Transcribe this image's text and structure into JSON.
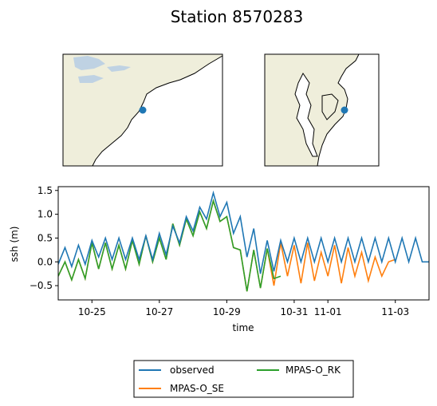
{
  "chart_data": {
    "type": "line",
    "title": "Station 8570283",
    "xlabel": "time",
    "ylabel": "ssh (m)",
    "x_units": "days (Oct 24 = 0)",
    "xlim": [
      "10-24",
      "11-04"
    ],
    "ylim": [
      -0.8,
      1.58
    ],
    "x_ticks": [
      "10-25",
      "10-27",
      "10-29",
      "10-31",
      "11-01",
      "11-03"
    ],
    "y_ticks": [
      "−0.5",
      "0.0",
      "0.5",
      "1.0",
      "1.5"
    ],
    "grid": false,
    "legend": {
      "placement": "below plot",
      "entries": [
        "observed",
        "MPAS-O_SE",
        "MPAS-O_RK"
      ]
    },
    "colors": {
      "observed": "#1f77b4",
      "MPAS-O_SE": "#ff7f0e",
      "MPAS-O_RK": "#2ca02c"
    },
    "series": [
      {
        "name": "observed",
        "x": [
          0.0,
          0.2,
          0.4,
          0.6,
          0.8,
          1.0,
          1.2,
          1.4,
          1.6,
          1.8,
          2.0,
          2.2,
          2.4,
          2.6,
          2.8,
          3.0,
          3.2,
          3.4,
          3.6,
          3.8,
          4.0,
          4.2,
          4.4,
          4.6,
          4.8,
          5.0,
          5.2,
          5.4,
          5.6,
          5.8,
          6.0,
          6.2,
          6.4,
          6.6,
          6.8,
          7.0,
          7.2,
          7.4,
          7.6,
          7.8,
          8.0,
          8.2,
          8.4,
          8.6,
          8.8,
          9.0,
          9.2,
          9.4,
          9.6,
          9.8,
          10.0,
          10.2,
          10.4,
          10.6,
          10.8,
          11.0
        ],
        "y": [
          -0.05,
          0.3,
          -0.1,
          0.35,
          -0.05,
          0.45,
          0.1,
          0.5,
          0.05,
          0.5,
          0.05,
          0.5,
          0.05,
          0.55,
          0.05,
          0.6,
          0.15,
          0.75,
          0.4,
          0.95,
          0.65,
          1.15,
          0.9,
          1.45,
          0.95,
          1.25,
          0.6,
          0.95,
          0.1,
          0.7,
          -0.25,
          0.45,
          -0.2,
          0.45,
          0.0,
          0.5,
          0.0,
          0.5,
          0.0,
          0.5,
          0.0,
          0.5,
          0.0,
          0.5,
          0.0,
          0.5,
          0.0,
          0.5,
          0.0,
          0.5,
          0.0,
          0.5,
          0.0,
          0.5,
          0.0,
          0.0
        ]
      },
      {
        "name": "MPAS-O_SE",
        "x": [
          0.0,
          0.2,
          0.4,
          0.6,
          0.8,
          1.0,
          1.2,
          1.4,
          1.6,
          1.8,
          2.0,
          2.2,
          2.4,
          2.6,
          2.8,
          3.0,
          3.2,
          3.4,
          3.6,
          3.8,
          4.0,
          4.2,
          4.4,
          4.6,
          4.8,
          5.0,
          5.2,
          5.4,
          5.6,
          5.8,
          6.0,
          6.2,
          6.4,
          6.6,
          6.8,
          7.0,
          7.2,
          7.4,
          7.6,
          7.8,
          8.0,
          8.2,
          8.4,
          8.6,
          8.8,
          9.0,
          9.2,
          9.4,
          9.6,
          9.8,
          10.0
        ],
        "y": [
          -0.3,
          0.0,
          -0.38,
          0.05,
          -0.35,
          0.4,
          -0.15,
          0.4,
          -0.15,
          0.35,
          -0.15,
          0.45,
          -0.05,
          0.55,
          0.0,
          0.5,
          0.05,
          0.8,
          0.35,
          0.9,
          0.55,
          1.05,
          0.7,
          1.28,
          0.85,
          0.95,
          0.3,
          0.25,
          -0.62,
          0.25,
          -0.55,
          0.28,
          -0.5,
          0.4,
          -0.3,
          0.35,
          -0.45,
          0.4,
          -0.4,
          0.2,
          -0.3,
          0.35,
          -0.45,
          0.3,
          -0.3,
          0.2,
          -0.4,
          0.1,
          -0.3,
          0.0,
          0.05
        ]
      },
      {
        "name": "MPAS-O_RK",
        "x": [
          0.0,
          0.2,
          0.4,
          0.6,
          0.8,
          1.0,
          1.2,
          1.4,
          1.6,
          1.8,
          2.0,
          2.2,
          2.4,
          2.6,
          2.8,
          3.0,
          3.2,
          3.4,
          3.6,
          3.8,
          4.0,
          4.2,
          4.4,
          4.6,
          4.8,
          5.0,
          5.2,
          5.4,
          5.6,
          5.8,
          6.0,
          6.2,
          6.4,
          6.6
        ],
        "y": [
          -0.3,
          0.0,
          -0.38,
          0.05,
          -0.35,
          0.4,
          -0.15,
          0.4,
          -0.15,
          0.35,
          -0.15,
          0.45,
          -0.05,
          0.55,
          0.0,
          0.5,
          0.05,
          0.8,
          0.35,
          0.9,
          0.55,
          1.05,
          0.7,
          1.28,
          0.85,
          0.95,
          0.3,
          0.25,
          -0.62,
          0.25,
          -0.55,
          0.28,
          -0.35,
          -0.3
        ]
      }
    ]
  },
  "maps": {
    "land_color": "#efeedb",
    "water_color": "#bfd2e3",
    "station_color": "#1f77b4"
  }
}
